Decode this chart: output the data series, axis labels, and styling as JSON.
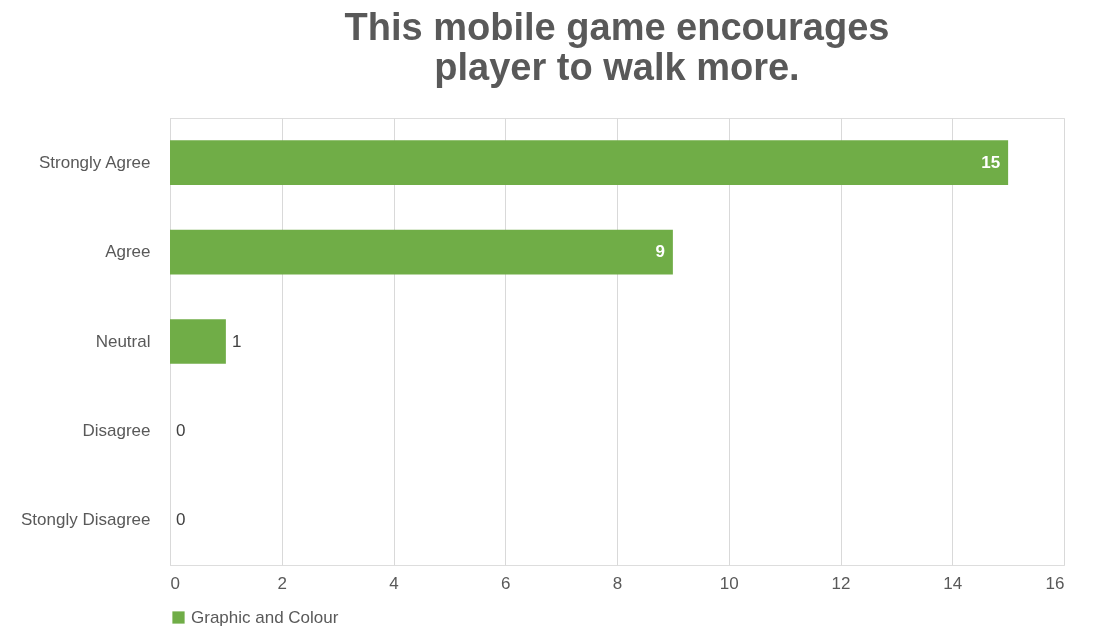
{
  "chart_data": {
    "type": "bar",
    "orientation": "horizontal",
    "title": "This mobile game encourages player to walk more.",
    "categories": [
      "Strongly Agree",
      "Agree",
      "Neutral",
      "Disagree",
      "Stongly Disagree"
    ],
    "series": [
      {
        "name": "Graphic and Colour",
        "color": "#70ad47",
        "values": [
          15,
          9,
          1,
          0,
          0
        ]
      }
    ],
    "xlim": [
      0,
      16
    ],
    "xticks": [
      0,
      2,
      4,
      6,
      8,
      10,
      12,
      14,
      16
    ],
    "grid": "x",
    "legend": "bottom",
    "data_labels": true
  }
}
